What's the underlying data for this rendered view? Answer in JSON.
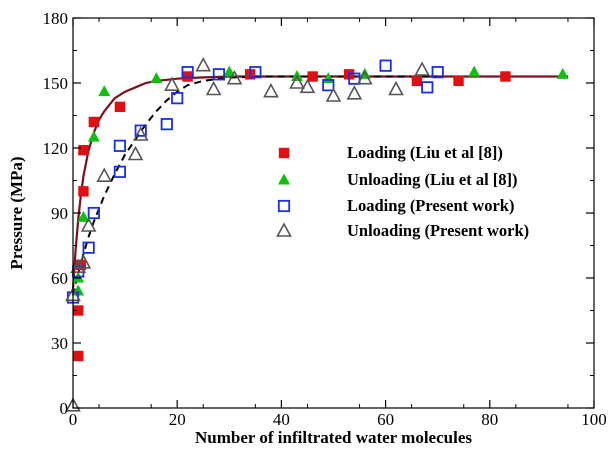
{
  "chart_data": {
    "type": "scatter",
    "title": "",
    "xlabel": "Number of infiltrated water molecules",
    "ylabel": "Pressure (MPa)",
    "xlim": [
      0,
      100
    ],
    "ylim": [
      0,
      180
    ],
    "xticks": [
      0,
      20,
      40,
      60,
      80,
      100
    ],
    "yticks": [
      0,
      30,
      60,
      90,
      120,
      150,
      180
    ],
    "grid": false,
    "legend_position": "center-right",
    "series": [
      {
        "name": "Loading (Liu et al [8])",
        "marker": "filled-square",
        "color": "#e01010",
        "x": [
          1,
          1,
          1.5,
          2,
          2,
          4,
          9,
          22,
          34,
          46,
          53,
          66,
          74,
          83
        ],
        "y": [
          24,
          45,
          66,
          100,
          119,
          132,
          139,
          153,
          154,
          153,
          154,
          151,
          151,
          153
        ]
      },
      {
        "name": "Unloading (Liu et al [8])",
        "marker": "filled-triangle",
        "color": "#10c010",
        "x": [
          1,
          1,
          2,
          4,
          6,
          16,
          30,
          43,
          49,
          56,
          77,
          94
        ],
        "y": [
          54,
          60,
          88,
          125,
          146,
          152,
          155,
          153,
          152,
          154,
          155,
          154
        ]
      },
      {
        "name": "Loading (Present work)",
        "marker": "open-square",
        "color": "#1a2ee6",
        "x": [
          0,
          1,
          3,
          4,
          9,
          9,
          13,
          18,
          20,
          22,
          28,
          35,
          49,
          54,
          60,
          68,
          70
        ],
        "y": [
          51,
          63,
          74,
          90,
          109,
          121,
          128,
          131,
          143,
          155,
          154,
          155,
          149,
          152,
          158,
          148,
          155
        ]
      },
      {
        "name": "Unloading (Present work)",
        "marker": "open-triangle",
        "color": "#555555",
        "x": [
          0,
          0,
          1,
          2,
          3,
          6,
          12,
          13,
          19,
          25,
          27,
          31,
          38,
          43,
          45,
          50,
          54,
          56,
          62,
          67
        ],
        "y": [
          1,
          52,
          65,
          67,
          84,
          107,
          117,
          126,
          149,
          158,
          147,
          152,
          146,
          150,
          148,
          144,
          145,
          152,
          147,
          156
        ]
      }
    ],
    "fit_curves": [
      {
        "style": "solid",
        "color": "#7a1020",
        "x": [
          0,
          0.5,
          1,
          1.5,
          2,
          3,
          4,
          5,
          6,
          7,
          8,
          10,
          12,
          14,
          16,
          18,
          20,
          24,
          30,
          40,
          60,
          80,
          95
        ],
        "y": [
          55,
          73,
          87,
          98,
          107,
          119,
          127,
          133,
          137,
          140,
          143,
          146,
          148,
          150,
          151,
          151.5,
          152,
          152.5,
          153,
          153,
          153,
          153,
          153
        ]
      },
      {
        "style": "dashed",
        "color": "#000000",
        "x": [
          0,
          1,
          2,
          3,
          4,
          6,
          8,
          10,
          12,
          14,
          16,
          18,
          20,
          22,
          25,
          30,
          35,
          40,
          50,
          60,
          70
        ],
        "y": [
          52,
          62,
          71,
          79,
          86,
          98,
          108,
          117,
          124,
          131,
          137,
          142,
          146,
          149,
          151,
          152.5,
          153,
          153,
          153,
          153,
          153
        ]
      }
    ]
  }
}
